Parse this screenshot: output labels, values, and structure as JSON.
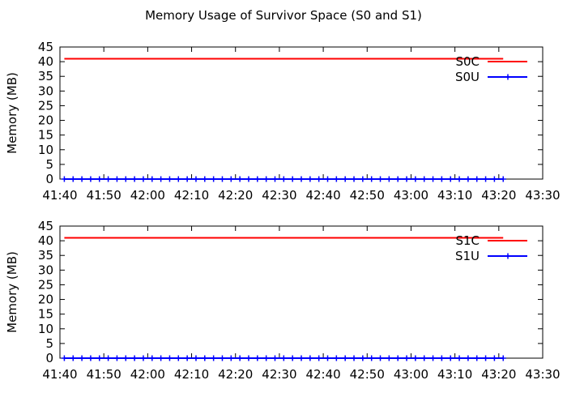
{
  "title": "Memory Usage of Survivor Space (S0 and S1)",
  "colors": {
    "capacity": "#ff0000",
    "used": "#0000ff",
    "axis": "#000000"
  },
  "chart_data": [
    {
      "type": "line",
      "xlabel": "",
      "ylabel": "Memory (MB)",
      "xlim": [
        "41:40",
        "43:30"
      ],
      "ylim": [
        0,
        45
      ],
      "x_ticks": [
        "41:40",
        "41:50",
        "42:00",
        "42:10",
        "42:20",
        "42:30",
        "42:40",
        "42:50",
        "43:00",
        "43:10",
        "43:20",
        "43:30"
      ],
      "y_ticks": [
        0,
        5,
        10,
        15,
        20,
        25,
        30,
        35,
        40,
        45
      ],
      "grid": false,
      "legend": "top-right",
      "x_range_of_data": [
        "41:41",
        "43:21"
      ],
      "series": [
        {
          "name": "S0C",
          "color": "#ff0000",
          "marker": "none",
          "value": 41.0
        },
        {
          "name": "S0U",
          "color": "#0000ff",
          "marker": "plus",
          "value": 0.0
        }
      ]
    },
    {
      "type": "line",
      "xlabel": "",
      "ylabel": "Memory (MB)",
      "xlim": [
        "41:40",
        "43:30"
      ],
      "ylim": [
        0,
        45
      ],
      "x_ticks": [
        "41:40",
        "41:50",
        "42:00",
        "42:10",
        "42:20",
        "42:30",
        "42:40",
        "42:50",
        "43:00",
        "43:10",
        "43:20",
        "43:30"
      ],
      "y_ticks": [
        0,
        5,
        10,
        15,
        20,
        25,
        30,
        35,
        40,
        45
      ],
      "grid": false,
      "legend": "top-right",
      "x_range_of_data": [
        "41:41",
        "43:21"
      ],
      "series": [
        {
          "name": "S1C",
          "color": "#ff0000",
          "marker": "none",
          "value": 41.0
        },
        {
          "name": "S1U",
          "color": "#0000ff",
          "marker": "plus",
          "value": 0.0
        }
      ]
    }
  ]
}
